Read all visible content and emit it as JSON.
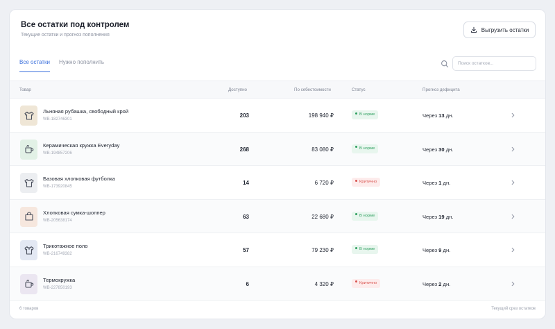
{
  "header": {
    "title": "Все остатки под контролем",
    "subtitle": "Текущие остатки и прогноз пополнения",
    "export_label": "Выгрузить остатки"
  },
  "tabs": [
    {
      "label": "Все остатки",
      "active": true
    },
    {
      "label": "Нужно пополнить",
      "active": false
    }
  ],
  "search": {
    "placeholder": "Поиск остатков..."
  },
  "columns": {
    "product": "Товар",
    "available": "Доступно",
    "cost": "По себестоимости",
    "status": "Статус",
    "forecast": "Прогноз дефицита"
  },
  "rows": [
    {
      "name": "Льняная рубашка, свободный крой",
      "sku": "WB-182746301",
      "available": "203",
      "cost": "198 940 ₽",
      "status": "В норме",
      "status_type": "ok",
      "forecast_prefix": "Через",
      "forecast_value": "13",
      "forecast_suffix": "дн.",
      "icon": "shirt-icon",
      "thumb_color": "#efe6d6"
    },
    {
      "name": "Керамическая кружка Everyday",
      "sku": "WB-194857206",
      "available": "268",
      "cost": "83 080 ₽",
      "status": "В норме",
      "status_type": "ok",
      "forecast_prefix": "Через",
      "forecast_value": "30",
      "forecast_suffix": "дн.",
      "icon": "mug-icon",
      "thumb_color": "#e2f1e6"
    },
    {
      "name": "Базовая хлопковая футболка",
      "sku": "WB-173920845",
      "available": "14",
      "cost": "6 720 ₽",
      "status": "Критично",
      "status_type": "crit",
      "forecast_prefix": "Через",
      "forecast_value": "1",
      "forecast_suffix": "дн.",
      "icon": "tshirt-icon",
      "thumb_color": "#eceef1"
    },
    {
      "name": "Хлопковая сумка-шоппер",
      "sku": "WB-205638174",
      "available": "63",
      "cost": "22 680 ₽",
      "status": "В норме",
      "status_type": "ok",
      "forecast_prefix": "Через",
      "forecast_value": "19",
      "forecast_suffix": "дн.",
      "icon": "bag-icon",
      "thumb_color": "#f6e7de"
    },
    {
      "name": "Трикотажное поло",
      "sku": "WB-216749382",
      "available": "57",
      "cost": "79 230 ₽",
      "status": "В норме",
      "status_type": "ok",
      "forecast_prefix": "Через",
      "forecast_value": "9",
      "forecast_suffix": "дн.",
      "icon": "polo-icon",
      "thumb_color": "#e3e8f3"
    },
    {
      "name": "Термокружка",
      "sku": "WB-227850193",
      "available": "6",
      "cost": "4 320 ₽",
      "status": "Критично",
      "status_type": "crit",
      "forecast_prefix": "Через",
      "forecast_value": "2",
      "forecast_suffix": "дн.",
      "icon": "thermo-mug-icon",
      "thumb_color": "#ebe6f1"
    }
  ],
  "footer": {
    "count": "6 товаров",
    "note": "Текущий срез остатков"
  },
  "colors": {
    "accent": "#3a6fdc",
    "ok": "#2e9f5f",
    "critical": "#d9534f"
  }
}
